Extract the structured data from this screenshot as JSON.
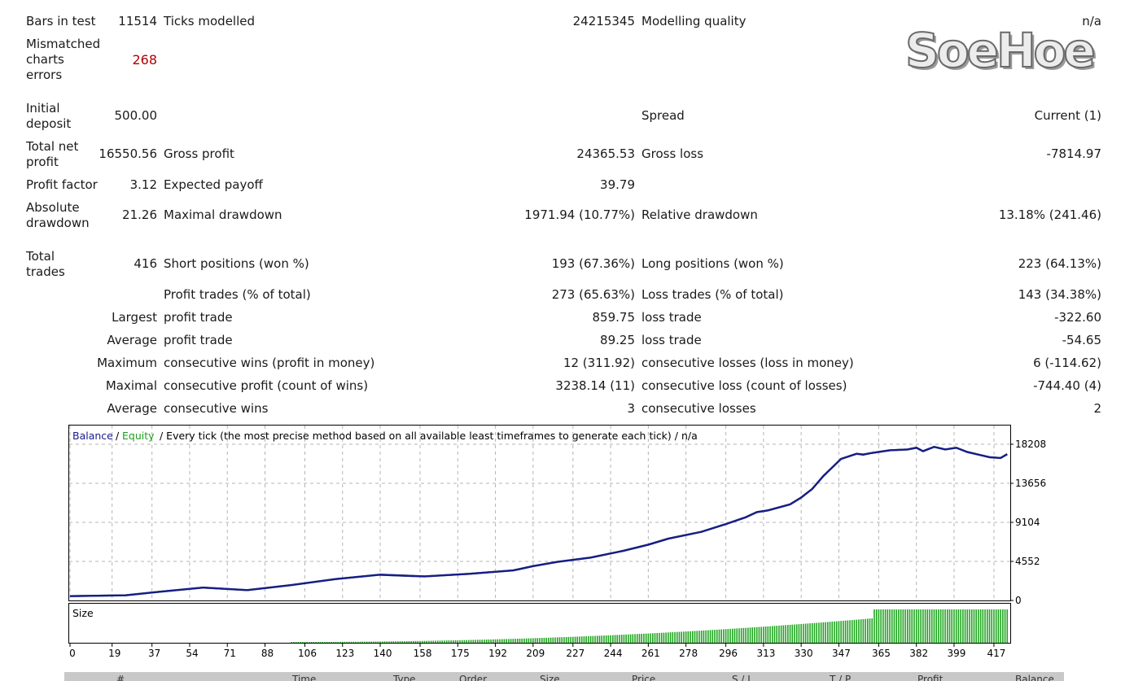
{
  "stats": {
    "bars_in_test": {
      "label": "Bars in test",
      "value": "11514"
    },
    "ticks_modelled": {
      "label": "Ticks modelled",
      "value": "24215345"
    },
    "modelling_quality": {
      "label": "Modelling quality",
      "value": "n/a"
    },
    "mismatched": {
      "label1": "Mismatched",
      "label2": "charts",
      "label3": "errors",
      "value": "268"
    },
    "initial_deposit": {
      "label1": "Initial",
      "label2": "deposit",
      "value": "500.00"
    },
    "spread": {
      "label": "Spread",
      "value": "Current (1)"
    },
    "total_net_profit": {
      "label1": "Total net",
      "label2": "profit",
      "value": "16550.56"
    },
    "gross_profit": {
      "label": "Gross profit",
      "value": "24365.53"
    },
    "gross_loss": {
      "label": "Gross loss",
      "value": "-7814.97"
    },
    "profit_factor": {
      "label": "Profit factor",
      "value": "3.12"
    },
    "expected_payoff": {
      "label": "Expected payoff",
      "value": "39.79"
    },
    "absolute_drawdown": {
      "label1": "Absolute",
      "label2": "drawdown",
      "value": "21.26"
    },
    "maximal_drawdown": {
      "label": "Maximal drawdown",
      "value": "1971.94 (10.77%)"
    },
    "relative_drawdown": {
      "label": "Relative drawdown",
      "value": "13.18% (241.46)"
    },
    "total_trades": {
      "label1": "Total",
      "label2": "trades",
      "value": "416"
    },
    "short_positions": {
      "label": "Short positions (won %)",
      "value": "193 (67.36%)"
    },
    "long_positions": {
      "label": "Long positions (won %)",
      "value": "223 (64.13%)"
    },
    "profit_trades": {
      "label": "Profit trades (% of total)",
      "value": "273 (65.63%)"
    },
    "loss_trades": {
      "label": "Loss trades (% of total)",
      "value": "143 (34.38%)"
    },
    "largest": {
      "prefix": "Largest",
      "profit_label": "profit trade",
      "profit_value": "859.75",
      "loss_label": "loss trade",
      "loss_value": "-322.60"
    },
    "average": {
      "prefix": "Average",
      "profit_label": "profit trade",
      "profit_value": "89.25",
      "loss_label": "loss trade",
      "loss_value": "-54.65"
    },
    "maximum": {
      "prefix": "Maximum",
      "wins_label": "consecutive wins (profit in money)",
      "wins_value": "12 (311.92)",
      "losses_label": "consecutive losses (loss in money)",
      "losses_value": "6 (-114.62)"
    },
    "maximal": {
      "prefix": "Maximal",
      "profit_label": "consecutive profit (count of wins)",
      "profit_value": "3238.14 (11)",
      "loss_label": "consecutive loss (count of losses)",
      "loss_value": "-744.40 (4)"
    },
    "average_consec": {
      "prefix": "Average",
      "wins_label": "consecutive wins",
      "wins_value": "3",
      "losses_label": "consecutive losses",
      "losses_value": "2"
    }
  },
  "logo": {
    "text": "SoeHoe"
  },
  "legend": {
    "balance": "Balance",
    "sep1": "/",
    "equity": "Equity",
    "rest": "/ Every tick (the most precise method based on all available least timeframes to generate each tick) / n/a"
  },
  "size_label": "Size",
  "colors": {
    "balance": "#1a1a8c",
    "equity": "#1e9e1e",
    "size_bar": "#1fa51f",
    "mismatch": "#b00000",
    "grid": "#b4b4b4"
  },
  "chart_data": {
    "type": "line",
    "title": "Balance / Equity",
    "y_ticks": [
      "18208",
      "13656",
      "9104",
      "4552",
      "0"
    ],
    "x_ticks": [
      "0",
      "19",
      "37",
      "54",
      "71",
      "88",
      "106",
      "123",
      "140",
      "158",
      "175",
      "192",
      "209",
      "227",
      "244",
      "261",
      "278",
      "296",
      "313",
      "330",
      "347",
      "365",
      "382",
      "399",
      "417"
    ],
    "ylim": [
      0,
      18208
    ],
    "xlim": [
      0,
      424
    ],
    "series": [
      {
        "name": "Balance",
        "x": [
          0,
          25,
          40,
          60,
          80,
          100,
          120,
          140,
          160,
          180,
          200,
          209,
          220,
          235,
          250,
          261,
          270,
          285,
          296,
          305,
          310,
          315,
          325,
          330,
          335,
          340,
          348,
          355,
          358,
          362,
          370,
          378,
          382,
          385,
          390,
          395,
          400,
          405,
          410,
          415,
          420,
          423
        ],
        "values": [
          500,
          600,
          1000,
          1500,
          1200,
          1800,
          2500,
          3000,
          2800,
          3100,
          3500,
          4000,
          4500,
          5000,
          5800,
          6500,
          7200,
          8000,
          8900,
          9700,
          10300,
          10500,
          11200,
          12000,
          13000,
          14500,
          16500,
          17100,
          17000,
          17200,
          17500,
          17600,
          17800,
          17400,
          17900,
          17600,
          17800,
          17300,
          17000,
          16700,
          16600,
          17050
        ]
      },
      {
        "name": "Equity",
        "x": [
          0,
          423
        ],
        "values": [
          500,
          17050
        ]
      }
    ],
    "size_subchart": {
      "label": "Size",
      "start_trade": 100,
      "end_trade": 423
    }
  },
  "trades_header": [
    "#",
    "Time",
    "Type",
    "Order",
    "Size",
    "Price",
    "S / L",
    "T / P",
    "Profit",
    "Balance"
  ]
}
